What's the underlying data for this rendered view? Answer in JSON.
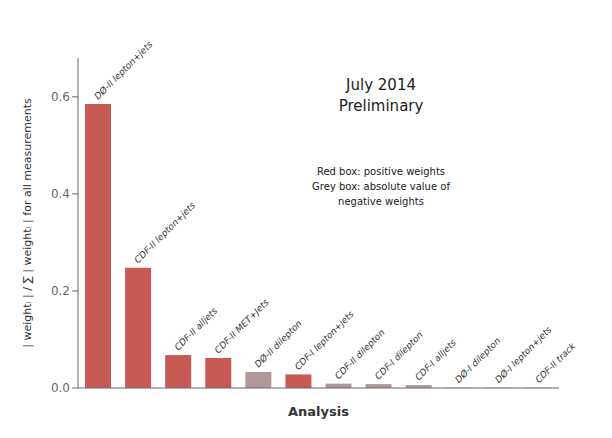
{
  "chart_data": {
    "type": "bar",
    "title": "July 2014",
    "subtitle": "Preliminary",
    "xlabel": "Analysis",
    "ylabel": "| weightᵢ | / ∑ | weightᵢ | for all measurements",
    "categories": [
      "DØ-II lepton+jets",
      "CDF-II lepton+jets",
      "CDF-II alljets",
      "CDF-II MET+Jets",
      "DØ-II dilepton",
      "CDF-I lepton+jets",
      "CDF-II dilepton",
      "CDF-I dilepton",
      "CDF-I alljets",
      "DØ-I dilepton",
      "DØ-I lepton+jets",
      "CDF-II track"
    ],
    "values": [
      0.585,
      0.248,
      0.068,
      0.062,
      0.033,
      0.028,
      0.009,
      0.008,
      0.006,
      0.001,
      0.001,
      0.001
    ],
    "colors": [
      "#C85A56",
      "#C85A56",
      "#C85A56",
      "#C85A56",
      "#B09898",
      "#C85A56",
      "#B09898",
      "#B09898",
      "#B09898",
      "#B09898",
      "#B09898",
      "#B09898"
    ],
    "annotations": [
      "Red box: positive weights",
      "Grey box: absolute value of",
      "negative weights"
    ],
    "ylim": [
      0,
      0.68
    ],
    "yticks": [
      {
        "value": 0,
        "label": "0.0"
      },
      0.2,
      0.4,
      0.6
    ],
    "tick_labels": "y",
    "grid": false
  }
}
